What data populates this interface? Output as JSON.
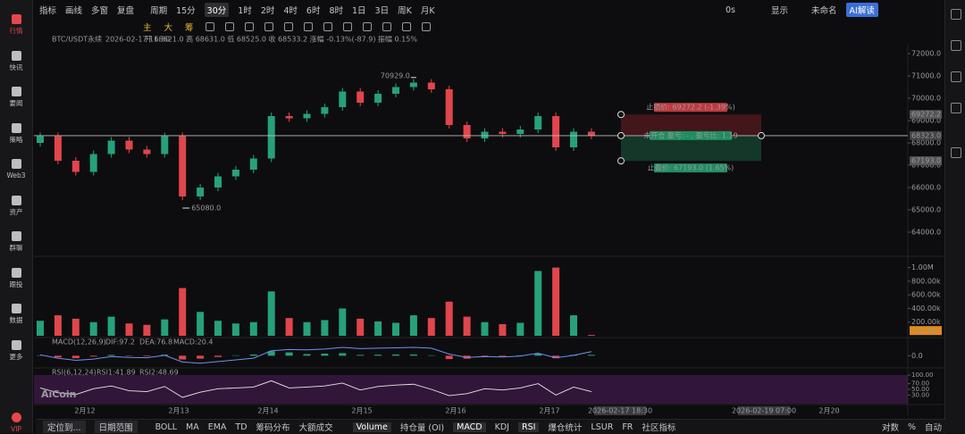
{
  "sidebar": [
    "行情",
    "快讯",
    "要闻",
    "策略",
    "Web3",
    "资产",
    "群聊",
    "跟投",
    "数据",
    "更多",
    "VIP"
  ],
  "toolbar": {
    "left": [
      "指标",
      "画线",
      "多窗",
      "复盘",
      "周期"
    ],
    "intervals": [
      "15分",
      "30分",
      "1时",
      "2时",
      "4时",
      "6时",
      "8时",
      "1日",
      "3日",
      "周K",
      "月K"
    ],
    "active_interval": 1,
    "right": [
      "0s",
      "显示",
      "未命名"
    ],
    "ai": "AI解读"
  },
  "drawing_tools": [
    "主",
    "大",
    "筹"
  ],
  "info": {
    "symbol": "BTC/USDT永续",
    "time": "2026-02-17 11:30",
    "ohlc": "开 68621.0  高 68631.0  低 68525.0  收 68533.2  涨幅 -0.13%(-87.9)  振幅 0.15%"
  },
  "price_chart": {
    "ylim": [
      63000,
      72400
    ],
    "yticks": [
      {
        "value": 72000,
        "label": "72000.0"
      },
      {
        "value": 71000,
        "label": "71000.0"
      },
      {
        "value": 70000,
        "label": "70000.0"
      },
      {
        "value": 69000,
        "label": "69000.0"
      },
      {
        "value": 68000,
        "label": "68000.0"
      },
      {
        "value": 67000,
        "label": "67000.0"
      },
      {
        "value": 66000,
        "label": "66000.0"
      },
      {
        "value": 65000,
        "label": "65000.0"
      },
      {
        "value": 64000,
        "label": "64000.0"
      }
    ],
    "open_first": 68000,
    "closes": [
      68300,
      67200,
      66700,
      67500,
      68100,
      67700,
      67500,
      68300,
      65600,
      66000,
      66500,
      66800,
      67300,
      69200,
      69100,
      69300,
      69600,
      70300,
      69800,
      70200,
      70500,
      70700,
      70400,
      68800,
      68200,
      68500,
      68400,
      68600,
      69200,
      67800,
      68500,
      68323
    ],
    "high": 70929,
    "high_label": "70929.0",
    "high_index": 21,
    "low": 65080,
    "low_label": "65080.0",
    "low_index": 8,
    "last_price": {
      "value": 68323,
      "label": "68323.0"
    },
    "stop_loss": {
      "value": 69272.2,
      "label": "69272.2",
      "note": "止损价: 69272.2 (-1.39%)"
    },
    "take_profit": {
      "value": 67193,
      "label": "67193.0",
      "note": "止盈价: 67193.0 (1.65%)"
    },
    "position_note": "未开仓  盈亏: - , 盈亏比: 1.19"
  },
  "volume": {
    "ylim": [
      0,
      1100000
    ],
    "yticks": [
      {
        "value": 1000000,
        "label": "1.00M"
      },
      {
        "value": 800000,
        "label": "800.00k"
      },
      {
        "value": 600000,
        "label": "600.00k"
      },
      {
        "value": 400000,
        "label": "400.00k"
      },
      {
        "value": 200000,
        "label": "200.00k"
      }
    ],
    "values": [
      220000,
      300000,
      250000,
      200000,
      280000,
      180000,
      160000,
      240000,
      700000,
      350000,
      220000,
      180000,
      200000,
      650000,
      260000,
      200000,
      230000,
      400000,
      250000,
      210000,
      190000,
      300000,
      260000,
      500000,
      280000,
      200000,
      170000,
      190000,
      950000,
      1000000,
      300000,
      11100
    ],
    "last": {
      "value": 11100,
      "label": "11.1k"
    }
  },
  "macd": {
    "title": "MACD(12,26,9)",
    "legend": [
      "DIF:97.2",
      "DEA:76.8",
      "MACD:20.4"
    ],
    "ylim": [
      -250,
      350
    ],
    "yticks": [
      {
        "value": 0,
        "label": "0.0"
      }
    ],
    "dif": [
      20,
      -60,
      -110,
      -80,
      -20,
      -40,
      -50,
      10,
      -150,
      -180,
      -140,
      -100,
      -60,
      120,
      150,
      140,
      160,
      200,
      170,
      180,
      190,
      200,
      180,
      40,
      -40,
      -20,
      -30,
      -10,
      60,
      -50,
      10,
      97.2
    ],
    "hist": [
      10,
      -40,
      -60,
      -20,
      20,
      -10,
      -15,
      25,
      -90,
      -70,
      -30,
      10,
      30,
      110,
      80,
      40,
      50,
      60,
      20,
      25,
      30,
      30,
      10,
      -80,
      -70,
      -30,
      -20,
      10,
      50,
      -60,
      20,
      20.4
    ]
  },
  "rsi": {
    "title": "RSI(6,12,24)",
    "legend": [
      "RSI1:41.89",
      "RSI2:48.69"
    ],
    "ylim": [
      0,
      100
    ],
    "yticks": [
      {
        "value": 100,
        "label": "100.00"
      },
      {
        "value": 70,
        "label": "70.00"
      },
      {
        "value": 50,
        "label": "50.00"
      },
      {
        "value": 30,
        "label": "30.00"
      }
    ],
    "values": [
      55,
      38,
      32,
      52,
      62,
      45,
      42,
      60,
      22,
      40,
      52,
      55,
      58,
      80,
      55,
      58,
      62,
      72,
      48,
      60,
      65,
      68,
      50,
      28,
      35,
      52,
      48,
      55,
      70,
      30,
      58,
      41.89
    ]
  },
  "x_axis": {
    "labels": [
      "2月12",
      "2月13",
      "2月14",
      "2月15",
      "2月16",
      "2月17",
      "2月20"
    ],
    "crosshair": [
      "2026-02-17 18:30",
      "2026-02-19 07:00"
    ]
  },
  "logo": "AiCoin",
  "bottom_bar": {
    "left": [
      "定位到...",
      "日期范围"
    ],
    "indicators": [
      "BOLL",
      "MA",
      "EMA",
      "TD",
      "筹码分布",
      "大额成交"
    ],
    "subs": [
      "Volume",
      "持仓量 (OI)",
      "MACD",
      "KDJ",
      "RSI",
      "爆仓统计",
      "LSUR",
      "FR",
      "社区指标"
    ],
    "active_subs": [
      0,
      2,
      4
    ],
    "right": [
      "对数",
      "%",
      "自动"
    ]
  }
}
